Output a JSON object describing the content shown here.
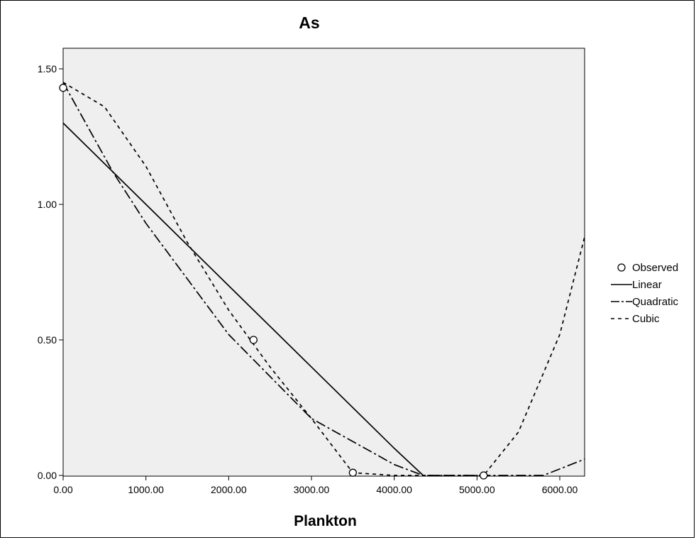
{
  "chart_data": {
    "type": "line",
    "title": "As",
    "xlabel": "Plankton",
    "ylabel": "",
    "xlim": [
      0,
      6300
    ],
    "ylim": [
      0,
      1.6
    ],
    "x_ticks": [
      0,
      1000,
      2000,
      3000,
      4000,
      5000,
      6000
    ],
    "x_tick_labels": [
      "0.00",
      "1000.00",
      "2000.00",
      "3000.00",
      "4000.00",
      "5000.00",
      "6000.00"
    ],
    "y_ticks": [
      0,
      0.5,
      1.0,
      1.5
    ],
    "y_tick_labels": [
      "0.00",
      "0.50",
      "1.00",
      "1.50"
    ],
    "grid": false,
    "legend_position": "right",
    "series": [
      {
        "name": "Observed",
        "style": "circle-marker",
        "x": [
          0,
          2300,
          3500,
          5080
        ],
        "y": [
          1.43,
          0.5,
          0.01,
          0.0
        ]
      },
      {
        "name": "Linear",
        "style": "solid",
        "x": [
          0,
          1000,
          2000,
          3000,
          4000,
          4350
        ],
        "y": [
          1.3,
          1.0,
          0.7,
          0.4,
          0.1,
          0.0
        ]
      },
      {
        "name": "Quadratic",
        "style": "dash-dot",
        "x": [
          0,
          600,
          1000,
          2000,
          3000,
          4000,
          4350,
          5000,
          5800,
          6300
        ],
        "y": [
          1.45,
          1.12,
          0.93,
          0.52,
          0.21,
          0.04,
          0.0,
          0.0,
          0.0,
          0.06
        ]
      },
      {
        "name": "Cubic",
        "style": "dashed",
        "x": [
          0,
          500,
          1000,
          1500,
          2000,
          2500,
          3000,
          3500,
          4000,
          4500,
          5000,
          5080,
          5500,
          6000,
          6300
        ],
        "y": [
          1.45,
          1.36,
          1.14,
          0.86,
          0.61,
          0.4,
          0.21,
          0.01,
          0.0,
          0.0,
          0.0,
          0.0,
          0.16,
          0.52,
          0.88
        ]
      }
    ]
  },
  "colors": {
    "plot_background": "#efefef",
    "line": "#000000"
  }
}
